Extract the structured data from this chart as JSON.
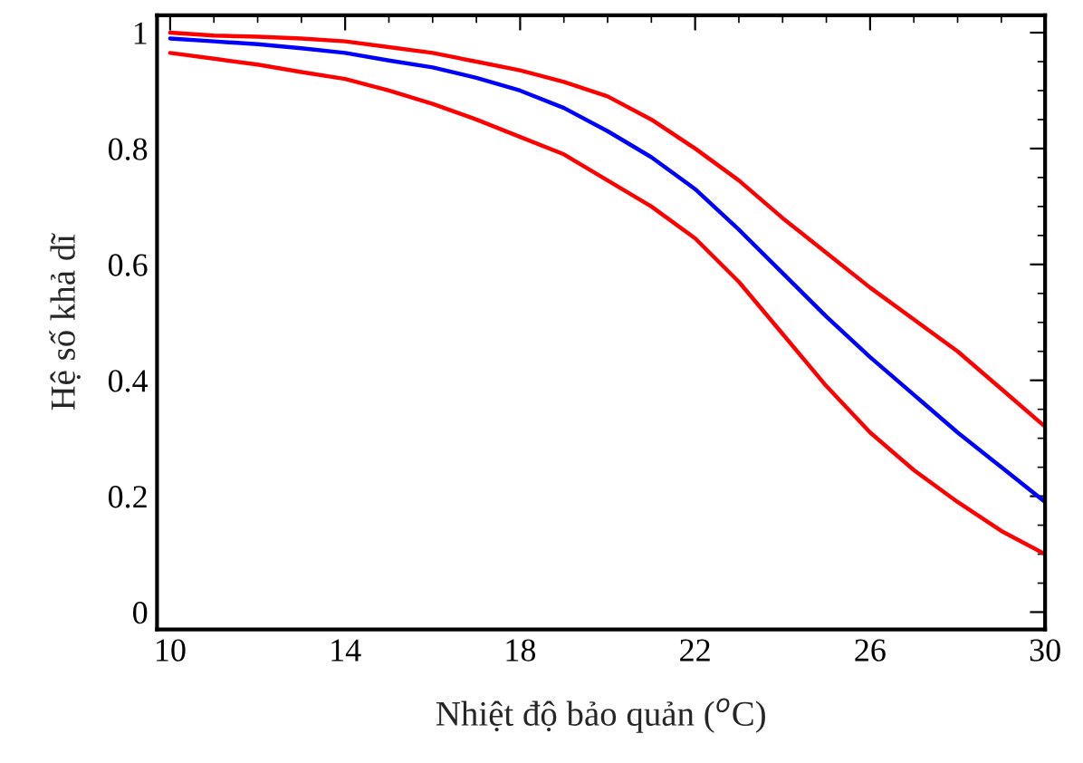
{
  "chart_data": {
    "type": "line",
    "xlabel": "Nhiệt độ bảo quản ($^{o}$C)",
    "ylabel": "Hệ số khả dĩ",
    "xlim": [
      9.7,
      30
    ],
    "ylim": [
      -0.03,
      1.03
    ],
    "xticks": [
      10,
      14,
      18,
      22,
      26,
      30
    ],
    "yticks": [
      0,
      0.2,
      0.4,
      0.6,
      0.8,
      1
    ],
    "grid": false,
    "legend": false,
    "marker": "none",
    "line_style": "solid",
    "series": [
      {
        "color": "#ff0000",
        "x": [
          10,
          11,
          12,
          13,
          14,
          15,
          16,
          17,
          18,
          19,
          20,
          21,
          22,
          23,
          24,
          25,
          26,
          27,
          28,
          29,
          30
        ],
        "values": [
          1.0,
          0.995,
          0.993,
          0.99,
          0.985,
          0.975,
          0.965,
          0.95,
          0.935,
          0.915,
          0.89,
          0.85,
          0.8,
          0.745,
          0.68,
          0.62,
          0.56,
          0.505,
          0.45,
          0.385,
          0.32
        ]
      },
      {
        "color": "#0000ff",
        "x": [
          10,
          11,
          12,
          13,
          14,
          15,
          16,
          17,
          18,
          19,
          20,
          21,
          22,
          23,
          24,
          25,
          26,
          27,
          28,
          29,
          30
        ],
        "values": [
          0.99,
          0.985,
          0.98,
          0.973,
          0.965,
          0.952,
          0.94,
          0.922,
          0.9,
          0.87,
          0.83,
          0.785,
          0.73,
          0.66,
          0.585,
          0.51,
          0.44,
          0.375,
          0.31,
          0.25,
          0.19
        ]
      },
      {
        "color": "#ff0000",
        "x": [
          10,
          11,
          12,
          13,
          14,
          15,
          16,
          17,
          18,
          19,
          20,
          21,
          22,
          23,
          24,
          25,
          26,
          27,
          28,
          29,
          30
        ],
        "values": [
          0.965,
          0.955,
          0.945,
          0.932,
          0.92,
          0.9,
          0.877,
          0.85,
          0.82,
          0.79,
          0.745,
          0.7,
          0.645,
          0.57,
          0.48,
          0.39,
          0.31,
          0.245,
          0.19,
          0.14,
          0.1
        ]
      }
    ]
  }
}
